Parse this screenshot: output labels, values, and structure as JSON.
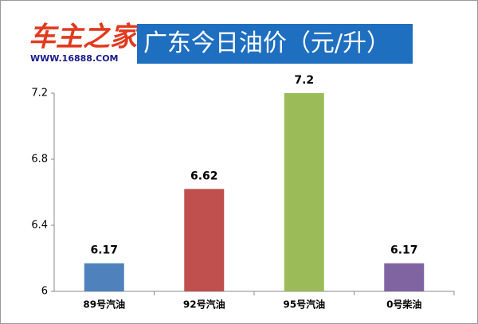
{
  "logo": {
    "name": "车主之家",
    "url": "WWW.16888.COM"
  },
  "chart_data": {
    "type": "bar",
    "title": "广东今日油价（元/升）",
    "categories": [
      "89号汽油",
      "92号汽油",
      "95号汽油",
      "0号柴油"
    ],
    "values": [
      6.17,
      6.62,
      7.2,
      6.17
    ],
    "colors": [
      "#4f81bd",
      "#c0504d",
      "#9bbb59",
      "#8064a2"
    ],
    "ylim": [
      6,
      7.2
    ],
    "yticks": [
      6,
      6.4,
      6.8,
      7.2
    ],
    "grid": false
  }
}
